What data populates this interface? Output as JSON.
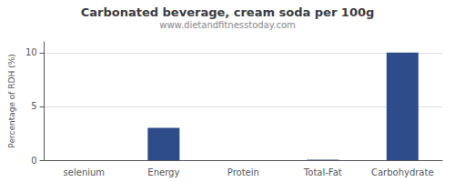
{
  "chart_data": {
    "type": "bar",
    "title": "Carbonated beverage, cream soda per 100g",
    "subtitle": "www.dietandfitnesstoday.com",
    "categories": [
      "selenium",
      "Energy",
      "Protein",
      "Total-Fat",
      "Carbohydrate"
    ],
    "values": [
      0,
      3.0,
      0,
      0.05,
      10.0
    ],
    "color": "#2e4b8a",
    "ylabel": "Percentage of RDH (%)",
    "ylim": [
      0,
      11
    ],
    "yticks": [
      0,
      5,
      10
    ],
    "grid": true
  }
}
